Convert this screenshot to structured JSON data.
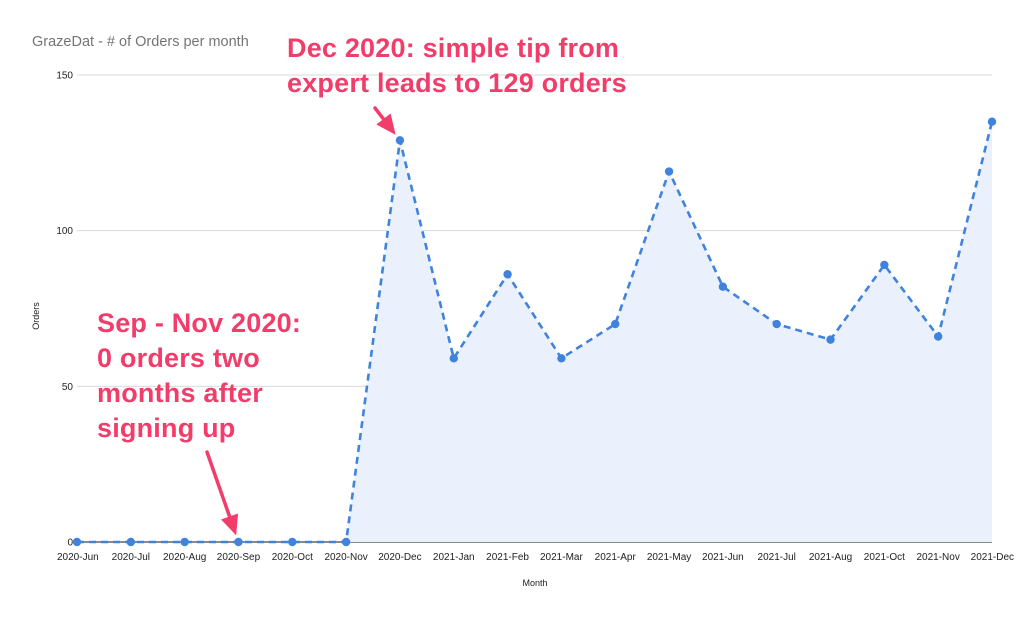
{
  "chart_data": {
    "type": "area",
    "title": "GrazeDat - # of Orders per month",
    "xlabel": "Month",
    "ylabel": "Orders",
    "ylim": [
      0,
      150
    ],
    "yticks": [
      0,
      50,
      100,
      150
    ],
    "grid": true,
    "line_style": "dashed",
    "colors": {
      "line": "#3f83de",
      "fill": "#eaf1fc",
      "grid": "#d9d9d9",
      "text": "#222222",
      "title": "#757575",
      "annotation": "#f23d6b"
    },
    "categories": [
      "2020-Jun",
      "2020-Jul",
      "2020-Aug",
      "2020-Sep",
      "2020-Oct",
      "2020-Nov",
      "2020-Dec",
      "2021-Jan",
      "2021-Feb",
      "2021-Mar",
      "2021-Apr",
      "2021-May",
      "2021-Jun",
      "2021-Jul",
      "2021-Aug",
      "2021-Oct",
      "2021-Nov",
      "2021-Dec"
    ],
    "series": [
      {
        "values": [
          0,
          0,
          0,
          0,
          0,
          0,
          129,
          59,
          86,
          59,
          70,
          119,
          82,
          70,
          65,
          89,
          66,
          135
        ]
      }
    ],
    "annotations": [
      {
        "text": "Dec 2020: simple tip from expert leads to 129 orders",
        "line1": "Dec 2020:  simple tip from",
        "line2": "expert leads to 129 orders",
        "target": "2020-Dec"
      },
      {
        "text": "Sep - Nov 2020: 0 orders two months after signing up",
        "line1": "Sep - Nov 2020:",
        "line2": "0 orders two",
        "line3": "months after",
        "line4": "signing up",
        "target": "2020-Sep"
      }
    ]
  }
}
